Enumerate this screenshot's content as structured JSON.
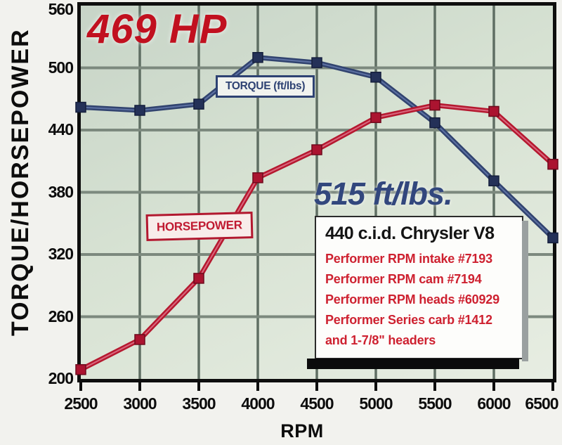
{
  "colors": {
    "torque_blue": "#31436f",
    "horsepower_red": "#b5182f",
    "callout_red": "#c1101f",
    "callout_blue": "#32477d",
    "plot_background": "#d7e2d3",
    "grid_vertical": "#5f6e63",
    "grid_horizontal": "#7c897e"
  },
  "y_axis": {
    "title": "TORQUE/HORSEPOWER",
    "ticks": [
      560,
      500,
      440,
      380,
      320,
      260,
      200
    ]
  },
  "x_axis": {
    "title": "RPM",
    "ticks": [
      2500,
      3000,
      3500,
      4000,
      4500,
      5000,
      5500,
      6000,
      6500
    ]
  },
  "callouts": {
    "hp_peak": "469 HP",
    "torque_peak": "515 ft/lbs."
  },
  "series_labels": {
    "torque": "TORQUE (ft/lbs)",
    "horsepower": "HORSEPOWER"
  },
  "info_box": {
    "title": "440 c.i.d. Chrysler V8",
    "lines": [
      "Performer RPM intake #7193",
      "Performer RPM cam #7194",
      "Performer RPM heads #60929",
      "Performer Series carb #1412",
      "and 1-7/8\" headers"
    ]
  },
  "chart_data": {
    "type": "line",
    "x": [
      2500,
      3000,
      3500,
      4000,
      4500,
      5000,
      5500,
      6000,
      6500
    ],
    "xlabel": "RPM",
    "ylabel": "TORQUE/HORSEPOWER",
    "xlim": [
      2500,
      6500
    ],
    "ylim": [
      200,
      560
    ],
    "ytick_step": 60,
    "grid": true,
    "legend_position": "inline-boxed-labels",
    "series": [
      {
        "id": "torque",
        "name": "TORQUE (ft/lbs)",
        "color": "#31436f",
        "core": "#5d71a3",
        "marker": "#243158",
        "edge": "#141e3c",
        "values": [
          462,
          459,
          465,
          510,
          505,
          491,
          447,
          391,
          336
        ]
      },
      {
        "id": "horsepower",
        "name": "HORSEPOWER",
        "color": "#b5182f",
        "core": "#d9677e",
        "marker": "#ab1430",
        "edge": "#6f0a1d",
        "values": [
          209,
          238,
          297,
          394,
          421,
          452,
          464,
          458,
          407
        ]
      }
    ],
    "annotations": [
      {
        "text": "469 HP",
        "color": "#c1101f"
      },
      {
        "text": "515 ft/lbs.",
        "color": "#32477d"
      }
    ]
  }
}
